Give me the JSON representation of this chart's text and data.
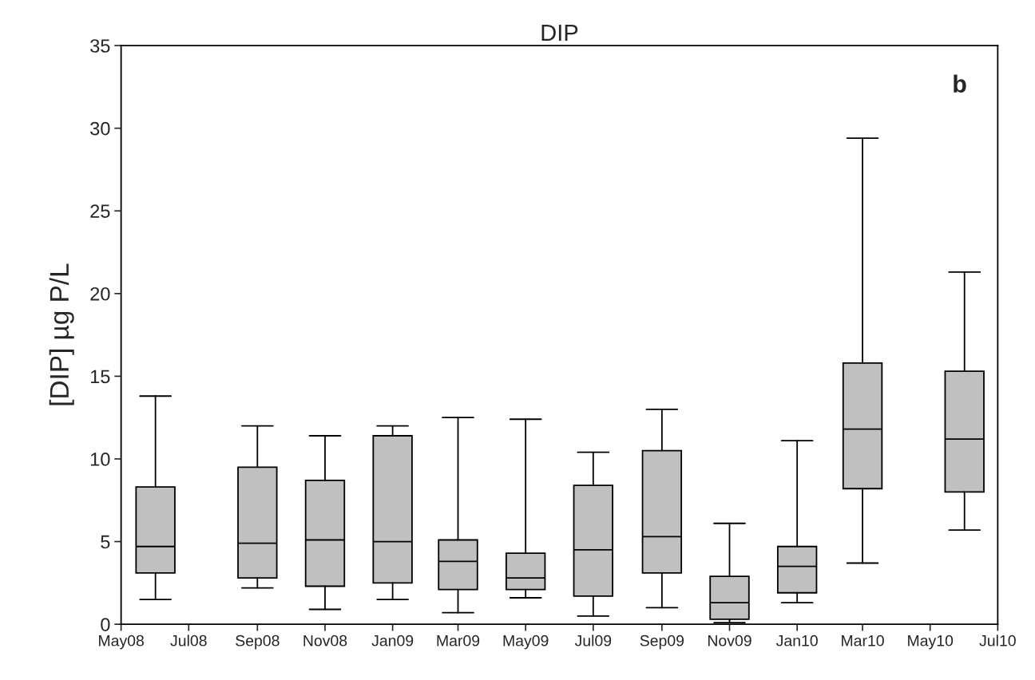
{
  "chart_data": {
    "type": "box",
    "title": "DIP",
    "ylabel": "[DIP] µg P/L",
    "x": [
      "2008-06",
      "2008-09",
      "2008-11",
      "2009-01",
      "2009-03",
      "2009-05",
      "2009-07",
      "2009-09",
      "2009-11",
      "2010-01",
      "2010-03",
      "2010-06"
    ],
    "boxes": [
      {
        "low": 1.5,
        "q1": 3.1,
        "median": 4.7,
        "q3": 8.3,
        "high": 13.8
      },
      {
        "low": 2.2,
        "q1": 2.8,
        "median": 4.9,
        "q3": 9.5,
        "high": 12.0
      },
      {
        "low": 0.9,
        "q1": 2.3,
        "median": 5.1,
        "q3": 8.7,
        "high": 11.4
      },
      {
        "low": 1.5,
        "q1": 2.5,
        "median": 5.0,
        "q3": 11.4,
        "high": 12.0
      },
      {
        "low": 0.7,
        "q1": 2.1,
        "median": 3.8,
        "q3": 5.1,
        "high": 12.5
      },
      {
        "low": 1.6,
        "q1": 2.1,
        "median": 2.8,
        "q3": 4.3,
        "high": 12.4
      },
      {
        "low": 0.5,
        "q1": 1.7,
        "median": 4.5,
        "q3": 8.4,
        "high": 10.4
      },
      {
        "low": 1.0,
        "q1": 3.1,
        "median": 5.3,
        "q3": 10.5,
        "high": 13.0
      },
      {
        "low": 0.1,
        "q1": 0.3,
        "median": 1.3,
        "q3": 2.9,
        "high": 6.1
      },
      {
        "low": 1.3,
        "q1": 1.9,
        "median": 3.5,
        "q3": 4.7,
        "high": 11.1
      },
      {
        "low": 3.7,
        "q1": 8.2,
        "median": 11.8,
        "q3": 15.8,
        "high": 29.4
      },
      {
        "low": 5.7,
        "q1": 8.0,
        "median": 11.2,
        "q3": 15.3,
        "high": 21.3
      }
    ],
    "color": "#c0c0c0",
    "xlim": [
      "2008-05",
      "2010-07"
    ],
    "xticks": [
      {
        "value": "2008-05",
        "label": "May08"
      },
      {
        "value": "2008-07",
        "label": "Jul08"
      },
      {
        "value": "2008-09",
        "label": "Sep08"
      },
      {
        "value": "2008-11",
        "label": "Nov08"
      },
      {
        "value": "2009-01",
        "label": "Jan09"
      },
      {
        "value": "2009-03",
        "label": "Mar09"
      },
      {
        "value": "2009-05",
        "label": "May09"
      },
      {
        "value": "2009-07",
        "label": "Jul09"
      },
      {
        "value": "2009-09",
        "label": "Sep09"
      },
      {
        "value": "2009-11",
        "label": "Nov09"
      },
      {
        "value": "2010-01",
        "label": "Jan10"
      },
      {
        "value": "2010-03",
        "label": "Mar10"
      },
      {
        "value": "2010-05",
        "label": "May10"
      },
      {
        "value": "2010-07",
        "label": "Jul10"
      }
    ],
    "ylim": [
      0,
      35
    ],
    "yticks": [
      0,
      5,
      10,
      15,
      20,
      25,
      30,
      35
    ],
    "grid": false,
    "annotations": [
      "b"
    ]
  }
}
